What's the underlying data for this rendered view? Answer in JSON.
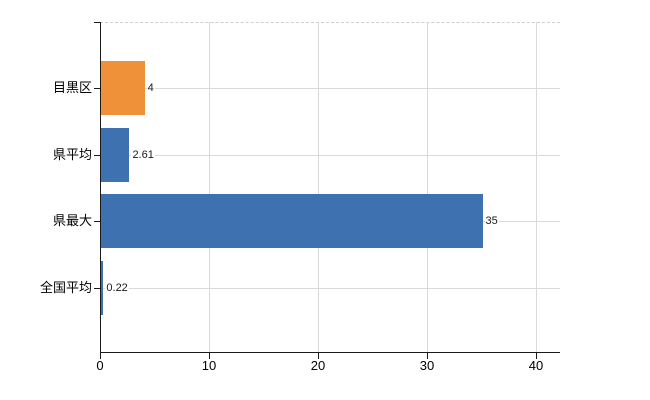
{
  "chart_data": {
    "type": "bar",
    "orientation": "horizontal",
    "title": "",
    "xlabel": "",
    "ylabel": "",
    "categories": [
      "目黒区",
      "県平均",
      "県最大",
      "全国平均"
    ],
    "values": [
      4,
      2.61,
      35,
      0.22
    ],
    "value_labels": [
      "4",
      "2.61",
      "35",
      "0.22"
    ],
    "bar_colors": [
      "#EF9139",
      "#3E71B0",
      "#3E71B0",
      "#3E71B0"
    ],
    "x_ticks": [
      0,
      10,
      20,
      30,
      40
    ],
    "x_tick_labels": [
      "0",
      "10",
      "20",
      "30",
      "40"
    ],
    "xlim": [
      0,
      42.2
    ],
    "grid": "on",
    "legend": "none",
    "colors": {
      "background": "#ffffff",
      "axis": "#1a1a1a",
      "gridline": "#d9d9d9",
      "blue_bar": "#3E71B0",
      "orange_bar": "#EF9139",
      "label_text": "#000000"
    }
  }
}
